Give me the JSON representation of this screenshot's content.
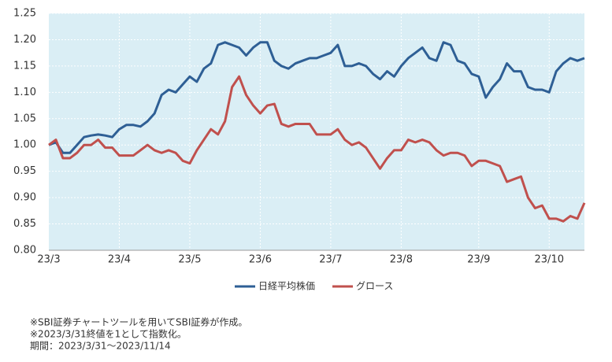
{
  "chart_data": {
    "type": "line",
    "categories": [
      "23/3",
      null,
      null,
      null,
      null,
      null,
      null,
      null,
      null,
      null,
      "23/4",
      null,
      null,
      null,
      null,
      null,
      null,
      null,
      null,
      null,
      "23/5",
      null,
      null,
      null,
      null,
      null,
      null,
      null,
      null,
      null,
      "23/6",
      null,
      null,
      null,
      null,
      null,
      null,
      null,
      null,
      null,
      "23/7",
      null,
      null,
      null,
      null,
      null,
      null,
      null,
      null,
      null,
      "23/8",
      null,
      null,
      null,
      null,
      null,
      null,
      null,
      null,
      null,
      null,
      "23/9",
      null,
      null,
      null,
      null,
      null,
      null,
      null,
      null,
      null,
      "23/10",
      null,
      null,
      null,
      null,
      null
    ],
    "series": [
      {
        "name": "日経平均株価",
        "color": "#2e5f95",
        "values": [
          1.0,
          1.005,
          0.985,
          0.985,
          1.0,
          1.015,
          1.018,
          1.02,
          1.018,
          1.015,
          1.03,
          1.038,
          1.038,
          1.035,
          1.045,
          1.06,
          1.095,
          1.105,
          1.1,
          1.115,
          1.13,
          1.12,
          1.145,
          1.155,
          1.19,
          1.195,
          1.19,
          1.185,
          1.17,
          1.185,
          1.195,
          1.195,
          1.16,
          1.15,
          1.145,
          1.155,
          1.16,
          1.165,
          1.165,
          1.17,
          1.175,
          1.19,
          1.15,
          1.15,
          1.155,
          1.15,
          1.135,
          1.125,
          1.14,
          1.13,
          1.15,
          1.165,
          1.175,
          1.185,
          1.165,
          1.16,
          1.195,
          1.19,
          1.16,
          1.155,
          1.135,
          1.13,
          1.09,
          1.11,
          1.125,
          1.155,
          1.14,
          1.14,
          1.11,
          1.105,
          1.105,
          1.1,
          1.14,
          1.155,
          1.165,
          1.16,
          1.165
        ]
      },
      {
        "name": "グロース",
        "color": "#c0504d",
        "values": [
          1.0,
          1.01,
          0.975,
          0.975,
          0.985,
          1.0,
          1.0,
          1.01,
          0.995,
          0.995,
          0.98,
          0.98,
          0.98,
          0.99,
          1.0,
          0.99,
          0.985,
          0.99,
          0.985,
          0.97,
          0.965,
          0.99,
          1.01,
          1.03,
          1.02,
          1.045,
          1.11,
          1.13,
          1.095,
          1.075,
          1.06,
          1.075,
          1.078,
          1.04,
          1.035,
          1.04,
          1.04,
          1.04,
          1.02,
          1.02,
          1.02,
          1.03,
          1.01,
          1.0,
          1.005,
          0.995,
          0.975,
          0.955,
          0.975,
          0.99,
          0.99,
          1.01,
          1.005,
          1.01,
          1.005,
          0.99,
          0.98,
          0.985,
          0.985,
          0.98,
          0.96,
          0.97,
          0.97,
          0.965,
          0.96,
          0.93,
          0.935,
          0.94,
          0.9,
          0.88,
          0.885,
          0.86,
          0.86,
          0.855,
          0.865,
          0.86,
          0.89
        ]
      }
    ],
    "ylim": [
      0.8,
      1.25
    ],
    "yticks": [
      {
        "value": 0.8,
        "label": "0.80"
      },
      {
        "value": 0.85,
        "label": "0.85"
      },
      {
        "value": 0.9,
        "label": "0.90"
      },
      {
        "value": 0.95,
        "label": "0.95"
      },
      {
        "value": 1.0,
        "label": "1.00"
      },
      {
        "value": 1.05,
        "label": "1.05"
      },
      {
        "value": 1.1,
        "label": "1.10"
      },
      {
        "value": 1.15,
        "label": "1.15"
      },
      {
        "value": 1.2,
        "label": "1.20"
      },
      {
        "value": 1.25,
        "label": "1.25"
      }
    ],
    "grid": true,
    "legend": "bottom",
    "notes": [
      "※SBI証券チャートツールを用いてSBI証券が作成。",
      "※2023/3/31終値を1として指数化。",
      "期間：2023/3/31～2023/11/14"
    ]
  }
}
